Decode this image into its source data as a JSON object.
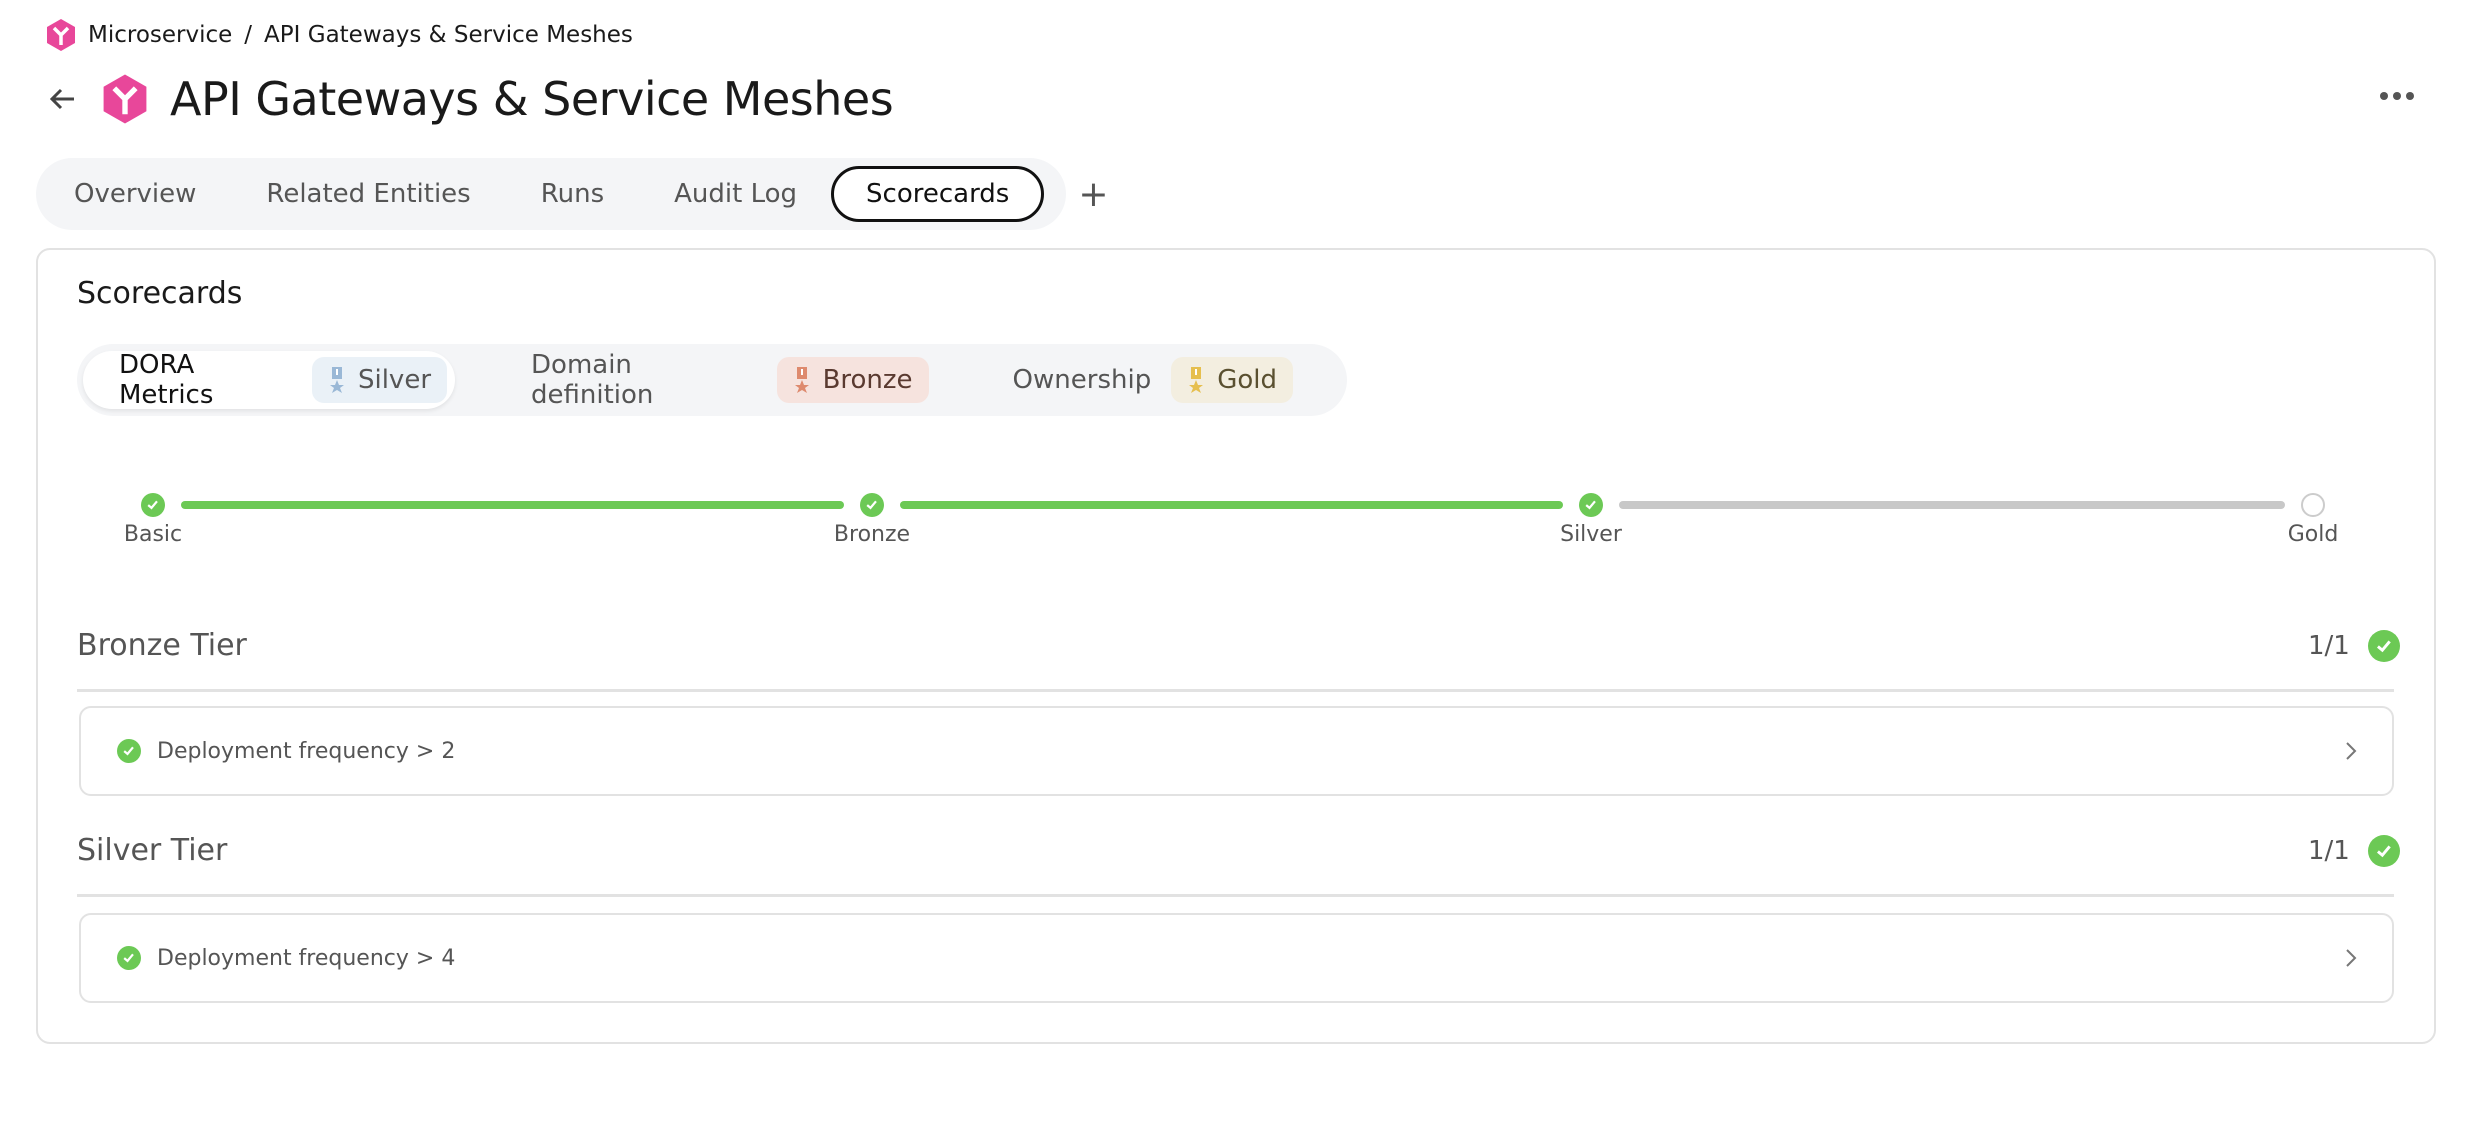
{
  "breadcrumb": {
    "parent": "Microservice",
    "separator": "/",
    "current": "API Gateways & Service Meshes"
  },
  "page_title": "API Gateways & Service Meshes",
  "tabs": [
    {
      "label": "Overview"
    },
    {
      "label": "Related Entities"
    },
    {
      "label": "Runs"
    },
    {
      "label": "Audit Log"
    },
    {
      "label": "Scorecards",
      "active": true
    }
  ],
  "add_tab": "+",
  "section_title": "Scorecards",
  "scorecards": [
    {
      "name": "DORA Metrics",
      "level": "Silver",
      "active": true,
      "badge_bg": "#eaf1f7",
      "icon_color": "#9ab8d6",
      "text_color": "#555555"
    },
    {
      "name": "Domain definition",
      "level": "Bronze",
      "badge_bg": "#f6e3de",
      "icon_color": "#de8a6e",
      "text_color": "#5a3a30"
    },
    {
      "name": "Ownership",
      "level": "Gold",
      "badge_bg": "#f3eee0",
      "icon_color": "#e6bf4e",
      "text_color": "#5a5030"
    }
  ],
  "progress": {
    "levels": [
      "Basic",
      "Bronze",
      "Silver",
      "Gold"
    ],
    "achieved": [
      "Basic",
      "Bronze",
      "Silver"
    ]
  },
  "tiers": [
    {
      "name": "Bronze Tier",
      "count": "1/1",
      "rules": [
        {
          "label": "Deployment frequency > 2",
          "passed": true
        }
      ]
    },
    {
      "name": "Silver Tier",
      "count": "1/1",
      "rules": [
        {
          "label": "Deployment frequency > 4",
          "passed": true
        }
      ]
    }
  ],
  "colors": {
    "accent": "#e8479a",
    "success": "#6cc955",
    "pending": "#c8c8c8"
  }
}
